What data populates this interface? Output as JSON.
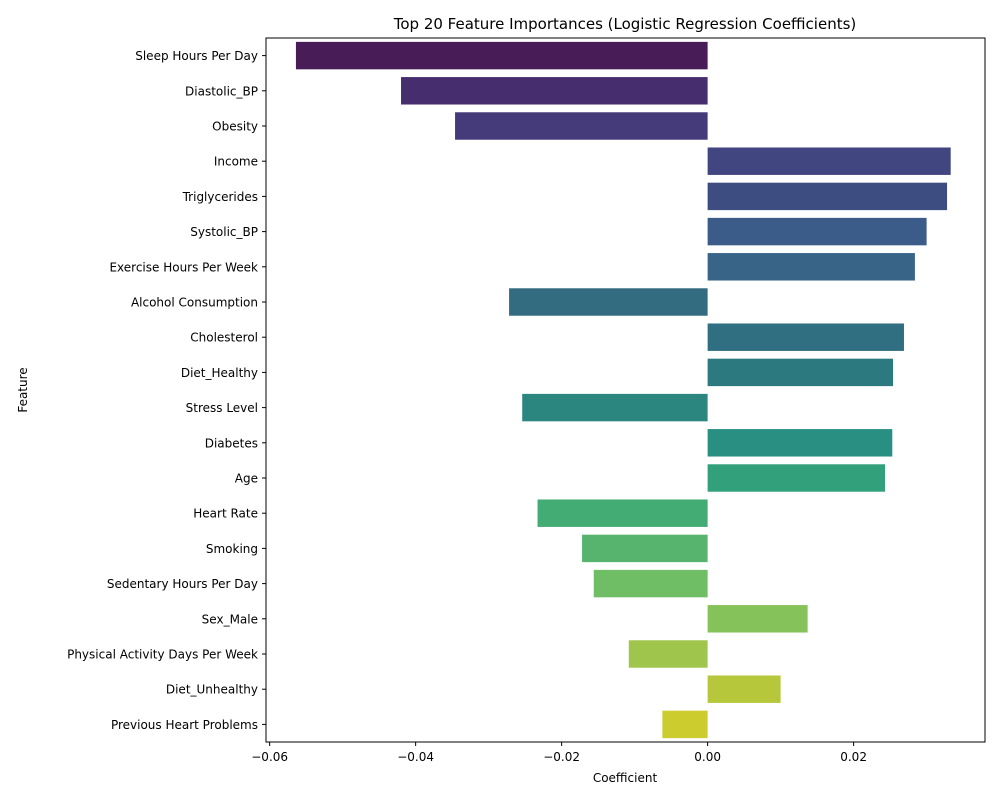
{
  "chart_data": {
    "type": "bar",
    "orientation": "horizontal",
    "title": "Top 20 Feature Importances (Logistic Regression Coefficients)",
    "xlabel": "Coefficient",
    "ylabel": "Feature",
    "xlim": [
      -0.0605,
      0.038
    ],
    "xticks": [
      -0.06,
      -0.04,
      -0.02,
      0.0,
      0.02
    ],
    "xtick_labels": [
      "−0.06",
      "−0.04",
      "−0.02",
      "0.00",
      "0.02"
    ],
    "grid": false,
    "legend": "none",
    "palette": "viridis",
    "categories": [
      "Sleep Hours Per Day",
      "Diastolic_BP",
      "Obesity",
      "Income",
      "Triglycerides",
      "Systolic_BP",
      "Exercise Hours Per Week",
      "Alcohol Consumption",
      "Cholesterol",
      "Diet_Healthy",
      "Stress Level",
      "Diabetes",
      "Age",
      "Heart Rate",
      "Smoking",
      "Sedentary Hours Per Day",
      "Sex_Male",
      "Physical Activity Days Per Week",
      "Diet_Unhealthy",
      "Previous Heart Problems"
    ],
    "values": [
      -0.0564,
      -0.042,
      -0.0346,
      0.0333,
      0.0328,
      0.03,
      0.0284,
      -0.0272,
      0.0269,
      0.0254,
      -0.0254,
      0.0253,
      0.0243,
      -0.0233,
      -0.0172,
      -0.0156,
      0.0137,
      -0.0108,
      0.01,
      -0.0062
    ],
    "colors": [
      "#481c57",
      "#462d6e",
      "#453a7a",
      "#424680",
      "#3d4d82",
      "#3b5b88",
      "#386488",
      "#336c80",
      "#306e81",
      "#2c7a7f",
      "#2b8680",
      "#298f83",
      "#32a07b",
      "#43ab74",
      "#57b46f",
      "#6fbd64",
      "#85c25a",
      "#9fc54c",
      "#b7c73b",
      "#cccc2f"
    ]
  }
}
